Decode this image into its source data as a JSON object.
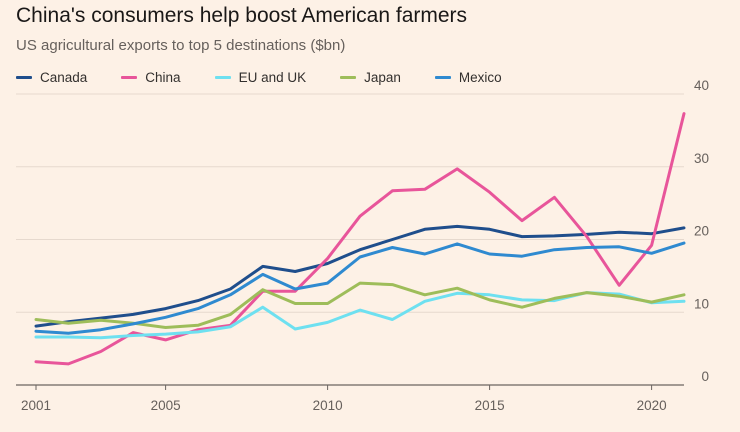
{
  "header": {
    "title": "China's consumers help boost American farmers",
    "subtitle": "US agricultural exports to top 5 destinations ($bn)"
  },
  "chart_data": {
    "type": "line",
    "title": "China's consumers help boost American farmers",
    "subtitle": "US agricultural exports to top 5 destinations ($bn)",
    "x": [
      2001,
      2002,
      2003,
      2004,
      2005,
      2006,
      2007,
      2008,
      2009,
      2010,
      2011,
      2012,
      2013,
      2014,
      2015,
      2016,
      2017,
      2018,
      2019,
      2020,
      2021
    ],
    "xticks": [
      2001,
      2005,
      2010,
      2015,
      2020
    ],
    "yticks": [
      0,
      10,
      20,
      30,
      40
    ],
    "xlim": [
      2001,
      2021
    ],
    "ylim": [
      0,
      40
    ],
    "grid": true,
    "legend_position": "top-left",
    "series": [
      {
        "name": "Canada",
        "color": "#1f4e8c",
        "values": [
          8.1,
          8.7,
          9.2,
          9.7,
          10.5,
          11.6,
          13.2,
          16.3,
          15.6,
          16.7,
          18.6,
          20.0,
          21.4,
          21.8,
          21.4,
          20.4,
          20.5,
          20.7,
          21.0,
          20.8,
          21.6
        ]
      },
      {
        "name": "China",
        "color": "#e8559a",
        "values": [
          3.2,
          2.9,
          4.6,
          7.2,
          6.2,
          7.6,
          8.2,
          12.9,
          12.9,
          17.4,
          23.2,
          26.7,
          26.9,
          29.7,
          26.5,
          22.6,
          25.8,
          20.4,
          13.7,
          19.2,
          37.3
        ]
      },
      {
        "name": "EU and UK",
        "color": "#6ee0f0",
        "values": [
          6.6,
          6.6,
          6.5,
          6.8,
          7.0,
          7.3,
          8.0,
          10.7,
          7.7,
          8.6,
          10.3,
          9.0,
          11.5,
          12.6,
          12.4,
          11.7,
          11.6,
          12.7,
          12.5,
          11.3,
          11.5
        ]
      },
      {
        "name": "Japan",
        "color": "#9ebd5a",
        "values": [
          9.0,
          8.5,
          8.9,
          8.5,
          7.9,
          8.2,
          9.7,
          13.1,
          11.2,
          11.2,
          14.0,
          13.8,
          12.4,
          13.3,
          11.7,
          10.7,
          11.9,
          12.7,
          12.2,
          11.4,
          12.4
        ]
      },
      {
        "name": "Mexico",
        "color": "#2f8ad0",
        "values": [
          7.4,
          7.1,
          7.6,
          8.4,
          9.3,
          10.5,
          12.4,
          15.2,
          13.2,
          14.0,
          17.6,
          18.9,
          18.0,
          19.4,
          18.0,
          17.7,
          18.6,
          18.9,
          19.0,
          18.1,
          19.5
        ]
      }
    ]
  }
}
